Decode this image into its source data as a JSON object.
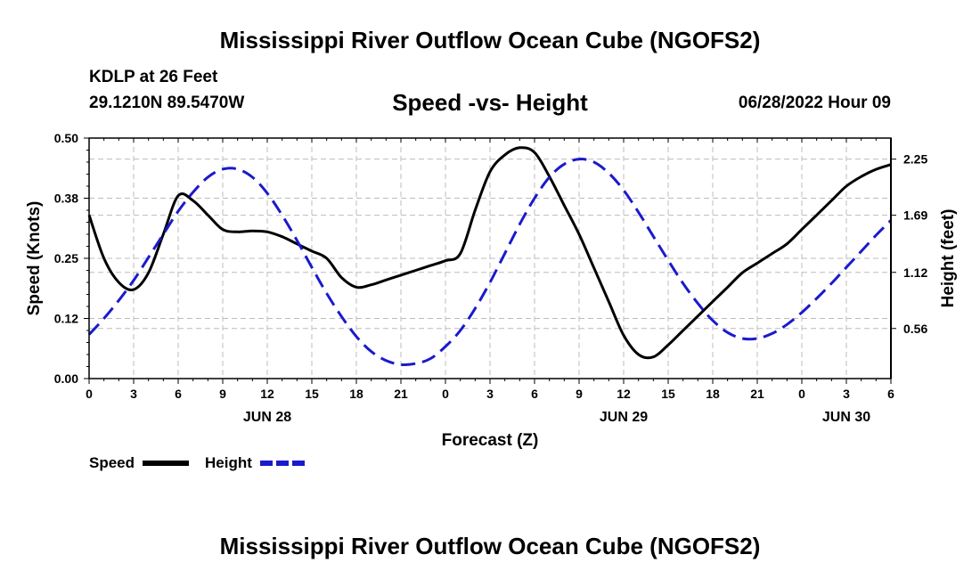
{
  "header": {
    "title": "Mississippi River Outflow Ocean Cube (NGOFS2)",
    "station": "KDLP at 26 Feet",
    "coordinates": "29.1210N  89.5470W",
    "subtitle": "Speed -vs- Height",
    "datetime": "06/28/2022 Hour 09"
  },
  "footer": {
    "title": "Mississippi River Outflow Ocean Cube (NGOFS2)"
  },
  "chart_data": {
    "type": "line",
    "title": "Speed -vs- Height",
    "xlabel": "Forecast (Z)",
    "ylabel": "Speed (Knots)",
    "y2label": "Height (feet)",
    "xlim": [
      0,
      54
    ],
    "ylim": [
      0,
      0.5
    ],
    "y2lim": [
      0.06,
      2.46
    ],
    "grid": true,
    "x_ticks": [
      0,
      3,
      6,
      9,
      12,
      15,
      18,
      21,
      24,
      27,
      30,
      33,
      36,
      39,
      42,
      45,
      48,
      51,
      54
    ],
    "x_tick_labels": [
      "0",
      "3",
      "6",
      "9",
      "12",
      "15",
      "18",
      "21",
      "0",
      "3",
      "6",
      "9",
      "12",
      "15",
      "18",
      "21",
      "0",
      "3",
      "6"
    ],
    "y_ticks": [
      0,
      0.125,
      0.25,
      0.375,
      0.5
    ],
    "y_tick_labels": [
      "0.00",
      "0.12",
      "0.25",
      "0.38",
      "0.50"
    ],
    "y2_ticks": [
      0.56,
      1.12,
      1.69,
      2.25
    ],
    "y2_tick_labels": [
      "0.56",
      "1.12",
      "1.69",
      "2.25"
    ],
    "day_labels": [
      {
        "x": 12,
        "label": "JUN 28"
      },
      {
        "x": 36,
        "label": "JUN 29"
      },
      {
        "x": 51,
        "label": "JUN 30"
      }
    ],
    "series": [
      {
        "name": "Speed",
        "axis": "left",
        "color": "#000000",
        "dash": "solid",
        "x": [
          0,
          1,
          2,
          3,
          4,
          5,
          6,
          7,
          8,
          9,
          10,
          11,
          12,
          13,
          14,
          15,
          16,
          17,
          18,
          19,
          20,
          21,
          22,
          23,
          24,
          25,
          26,
          27,
          28,
          29,
          30,
          31,
          32,
          33,
          34,
          35,
          36,
          37,
          38,
          39,
          40,
          41,
          42,
          43,
          44,
          45,
          46,
          47,
          48,
          49,
          50,
          51,
          52,
          53,
          54
        ],
        "values": [
          0.34,
          0.25,
          0.2,
          0.185,
          0.22,
          0.3,
          0.38,
          0.37,
          0.34,
          0.31,
          0.305,
          0.307,
          0.305,
          0.295,
          0.28,
          0.265,
          0.25,
          0.21,
          0.19,
          0.195,
          0.205,
          0.215,
          0.225,
          0.235,
          0.245,
          0.26,
          0.35,
          0.43,
          0.465,
          0.48,
          0.47,
          0.42,
          0.36,
          0.3,
          0.23,
          0.16,
          0.09,
          0.05,
          0.045,
          0.07,
          0.1,
          0.13,
          0.16,
          0.19,
          0.22,
          0.24,
          0.26,
          0.28,
          0.31,
          0.34,
          0.37,
          0.4,
          0.42,
          0.435,
          0.445
        ]
      },
      {
        "name": "Height",
        "axis": "right",
        "color": "#1a1acc",
        "dash": "dashed",
        "x": [
          0,
          1,
          2,
          3,
          4,
          5,
          6,
          7,
          8,
          9,
          10,
          11,
          12,
          13,
          14,
          15,
          16,
          17,
          18,
          19,
          20,
          21,
          22,
          23,
          24,
          25,
          26,
          27,
          28,
          29,
          30,
          31,
          32,
          33,
          34,
          35,
          36,
          37,
          38,
          39,
          40,
          41,
          42,
          43,
          44,
          45,
          46,
          47,
          48,
          49,
          50,
          51,
          52,
          53,
          54
        ],
        "values": [
          0.5,
          0.66,
          0.84,
          1.04,
          1.27,
          1.5,
          1.73,
          1.92,
          2.07,
          2.15,
          2.15,
          2.07,
          1.91,
          1.69,
          1.44,
          1.17,
          0.91,
          0.68,
          0.48,
          0.33,
          0.24,
          0.2,
          0.21,
          0.26,
          0.38,
          0.54,
          0.76,
          1.02,
          1.31,
          1.6,
          1.86,
          2.07,
          2.2,
          2.25,
          2.22,
          2.11,
          1.94,
          1.72,
          1.48,
          1.24,
          1.01,
          0.81,
          0.64,
          0.52,
          0.46,
          0.46,
          0.51,
          0.6,
          0.72,
          0.86,
          1.01,
          1.17,
          1.33,
          1.49,
          1.64
        ]
      }
    ],
    "legend": [
      {
        "label": "Speed",
        "color": "#000000",
        "dash": "solid"
      },
      {
        "label": "Height",
        "color": "#1a1acc",
        "dash": "dashed"
      }
    ]
  }
}
